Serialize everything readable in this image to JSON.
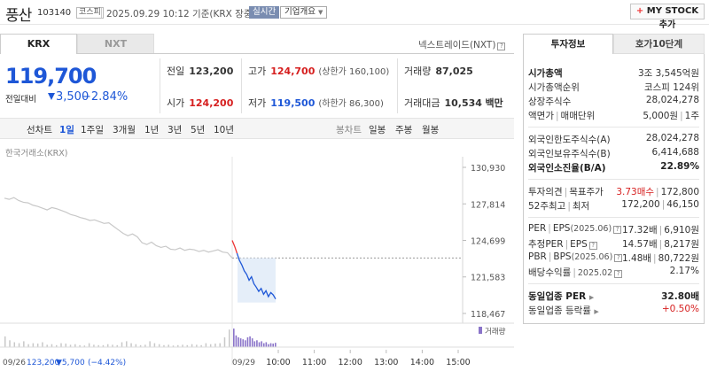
{
  "header": {
    "name": "풍산",
    "code": "103140",
    "market": "코스피",
    "datetime": "2025.09.29 10:12 기준(KRX 장중)",
    "live": "실시간",
    "company_info": "기업개요",
    "mystock": "MY STOCK 추가"
  },
  "tabs": {
    "krx": "KRX",
    "nxt": "NXT",
    "nextrade": "넥스트레이드(NXT)"
  },
  "quote": {
    "price": "119,700",
    "change_label": "전일대비",
    "change": "3,500",
    "change_pct": "−2.84%",
    "prev_close_label": "전일",
    "prev_close": "123,200",
    "open_label": "시가",
    "open": "124,200",
    "high_label": "고가",
    "high": "124,700",
    "high_limit": "(상한가 160,100)",
    "low_label": "저가",
    "low": "119,500",
    "low_limit": "(하한가 86,300)",
    "volume_label": "거래량",
    "volume": "87,025",
    "value_label": "거래대금",
    "value": "10,534",
    "value_unit": "백만"
  },
  "periods": {
    "chart_type": "선차트",
    "items": [
      "1일",
      "1주일",
      "3개월",
      "1년",
      "3년",
      "5년",
      "10년"
    ],
    "candle": "봉차트",
    "candle_items": [
      "일봉",
      "주봉",
      "월봉"
    ]
  },
  "chart_data": {
    "type": "line",
    "title": "",
    "source": "한국거래소(KRX)",
    "y_ticks": [
      "130,930",
      "127,814",
      "124,699",
      "121,583",
      "118,467"
    ],
    "ylim": [
      118467,
      130930
    ],
    "prev_day_label": "09/26",
    "prev_day_close": "123,200",
    "prev_day_change": "▼5,700",
    "prev_day_pct": "(−4.42%)",
    "today_label": "09/29",
    "x_ticks": [
      "10:00",
      "11:00",
      "12:00",
      "13:00",
      "14:00",
      "15:00"
    ],
    "volume_label": "거래량",
    "prev_series": [
      128300,
      128200,
      128350,
      128100,
      127950,
      127900,
      127700,
      127600,
      127450,
      127300,
      127500,
      127400,
      127250,
      127100,
      126900,
      126800,
      126650,
      126550,
      126400,
      126450,
      126300,
      126150,
      126200,
      125900,
      125600,
      125300,
      125100,
      125250,
      125000,
      124500,
      124350,
      124550,
      124250,
      124100,
      124200,
      123950,
      123900,
      124050,
      123850,
      123950,
      123900,
      123750,
      123850,
      123700,
      123800,
      123900,
      123700,
      123650,
      123200
    ],
    "today_series": [
      124700,
      124200,
      123600,
      123000,
      122600,
      122100,
      121800,
      121300,
      121600,
      121000,
      120700,
      120350,
      120600,
      120100,
      120400,
      119900,
      120250,
      120050,
      119700
    ],
    "prev_volume": [
      0.55,
      0.35,
      0.25,
      0.2,
      0.3,
      0.15,
      0.2,
      0.18,
      0.25,
      0.12,
      0.15,
      0.1,
      0.2,
      0.18,
      0.12,
      0.15,
      0.1,
      0.08,
      0.2,
      0.12,
      0.1,
      0.1,
      0.15,
      0.12,
      0.1,
      0.25,
      0.3,
      0.2,
      0.15,
      0.1,
      0.12,
      0.3,
      0.2,
      0.15,
      0.1,
      0.12,
      0.08,
      0.1,
      0.12,
      0.1,
      0.15,
      0.12,
      0.1,
      0.2,
      0.15,
      0.18,
      0.2,
      0.5,
      0.9
    ],
    "today_volume": [
      0.95,
      0.6,
      0.5,
      0.45,
      0.4,
      0.35,
      0.5,
      0.55,
      0.45,
      0.3,
      0.35,
      0.25,
      0.3,
      0.2,
      0.25,
      0.15,
      0.2,
      0.18,
      0.22
    ]
  },
  "invest": {
    "tab_a": "투자정보",
    "tab_b": "호가10단계",
    "rows1": [
      {
        "label": "시가총액",
        "value": "3조 3,545억원"
      },
      {
        "label": "시가총액순위",
        "value": "코스피 124위"
      },
      {
        "label": "상장주식수",
        "value": "28,024,278"
      },
      {
        "label": "액면가",
        "label2": "매매단위",
        "value": "5,000원",
        "value2": "1주"
      }
    ],
    "rows2": [
      {
        "label": "외국인한도주식수(A)",
        "value": "28,024,278"
      },
      {
        "label": "외국인보유주식수(B)",
        "value": "6,414,688"
      },
      {
        "label": "외국인소진율(B/A)",
        "value": "22.89%"
      }
    ],
    "opinion": {
      "label": "투자의견",
      "label2": "목표주가",
      "value": "3.73매수",
      "value2": "172,800"
    },
    "w52": {
      "label": "52주최고",
      "label2": "최저",
      "value": "172,200",
      "value2": "46,150"
    },
    "rows4": [
      {
        "label": "PER",
        "label2": "EPS",
        "note": "(2025.06)",
        "value": "17.32배",
        "value2": "6,910원"
      },
      {
        "label": "추정PER",
        "label2": "EPS",
        "note": "",
        "value": "14.57배",
        "value2": "8,217원"
      },
      {
        "label": "PBR",
        "label2": "BPS",
        "note": "(2025.06)",
        "value": "1.48배",
        "value2": "80,722원"
      },
      {
        "label": "배당수익률",
        "label2": "2025.02",
        "note": "",
        "value": "2.17%",
        "value2": ""
      }
    ],
    "industry_per_label": "동일업종 PER",
    "industry_per": "32.80배",
    "industry_chg_label": "동일업종 등락률",
    "industry_chg": "+0.50%"
  }
}
